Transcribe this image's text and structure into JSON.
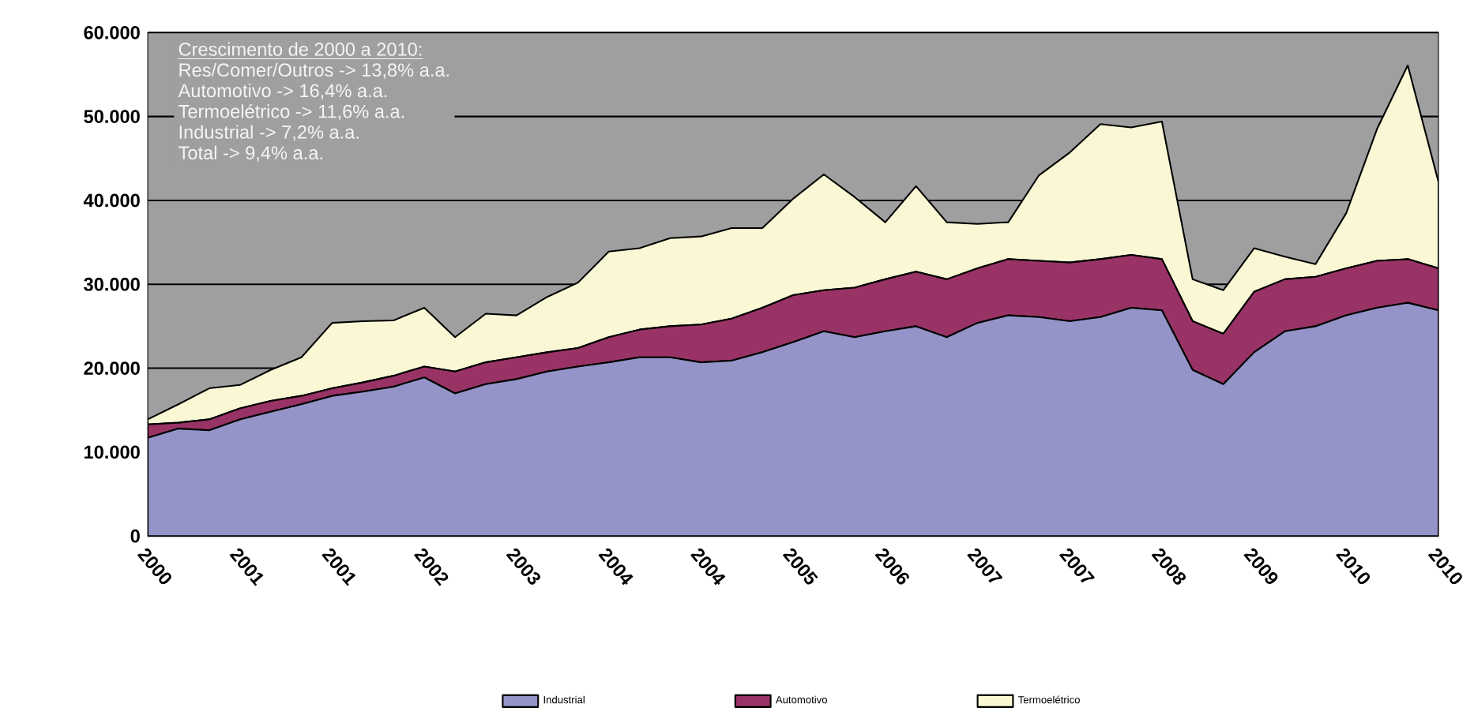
{
  "chart_data": {
    "type": "area",
    "stacked": true,
    "categories": [
      "2000",
      null,
      null,
      "2001",
      null,
      null,
      "2001",
      null,
      null,
      "2002",
      null,
      null,
      "2003",
      null,
      null,
      "2004",
      null,
      null,
      "2004",
      null,
      null,
      "2005",
      null,
      null,
      "2006",
      null,
      null,
      "2007",
      null,
      null,
      "2007",
      null,
      null,
      "2008",
      null,
      null,
      "2009",
      null,
      null,
      "2010",
      null,
      null,
      "2010"
    ],
    "series": [
      {
        "name": "Industrial",
        "color": "#9494c8",
        "values": [
          11700,
          12800,
          12600,
          13900,
          14800,
          15700,
          16700,
          17200,
          17800,
          18900,
          17000,
          18100,
          18700,
          19600,
          20200,
          20700,
          21300,
          21300,
          20700,
          20900,
          21900,
          23100,
          24400,
          23700,
          24400,
          25000,
          23700,
          25400,
          26300,
          26100,
          25600,
          26100,
          27200,
          26900,
          19800,
          18100,
          21900,
          24400,
          25000,
          26300,
          27200,
          27800,
          26900
        ]
      },
      {
        "name": "Automotivo",
        "color": "#993366",
        "values": [
          1600,
          700,
          1300,
          1300,
          1300,
          1000,
          900,
          1100,
          1300,
          1300,
          2600,
          2600,
          2600,
          2300,
          2200,
          3000,
          3300,
          3700,
          4500,
          5000,
          5300,
          5600,
          4900,
          5900,
          6200,
          6500,
          6900,
          6500,
          6700,
          6700,
          7000,
          6900,
          6300,
          6100,
          5800,
          6000,
          7200,
          6200,
          5900,
          5600,
          5600,
          5200,
          5000
        ]
      },
      {
        "name": "Termoelétrico",
        "color": "#faf8d4",
        "values": [
          600,
          2200,
          3700,
          2800,
          3700,
          4600,
          7800,
          7300,
          6600,
          7000,
          4100,
          5800,
          5000,
          6600,
          7800,
          10200,
          9700,
          10500,
          10500,
          10800,
          9500,
          11500,
          13800,
          10800,
          6800,
          10200,
          6800,
          5300,
          4400,
          10200,
          13100,
          16100,
          15200,
          16400,
          5000,
          5200,
          5200,
          2700,
          1500,
          6600,
          15700,
          23100,
          10300
        ]
      }
    ],
    "ylim": [
      0,
      60000
    ],
    "yticks": [
      0,
      {
        "value": 10000,
        "label": "10.000"
      },
      {
        "value": 20000,
        "label": "20.000"
      },
      {
        "value": 30000,
        "label": "30.000"
      },
      {
        "value": 40000,
        "label": "40.000"
      },
      {
        "value": 50000,
        "label": "50.000"
      },
      {
        "value": 60000,
        "label": "60.000"
      }
    ],
    "grid": "y",
    "legend": "bottom",
    "annotations": [
      "Crescimento de 2000 a 2010:",
      "Res/Comer/Outros -> 13,8% a.a.",
      "Automotivo -> 16,4% a.a.",
      "Termoelétrico -> 11,6% a.a.",
      "Industrial -> 7,2% a.a.",
      "Total -> 9,4% a.a."
    ]
  }
}
